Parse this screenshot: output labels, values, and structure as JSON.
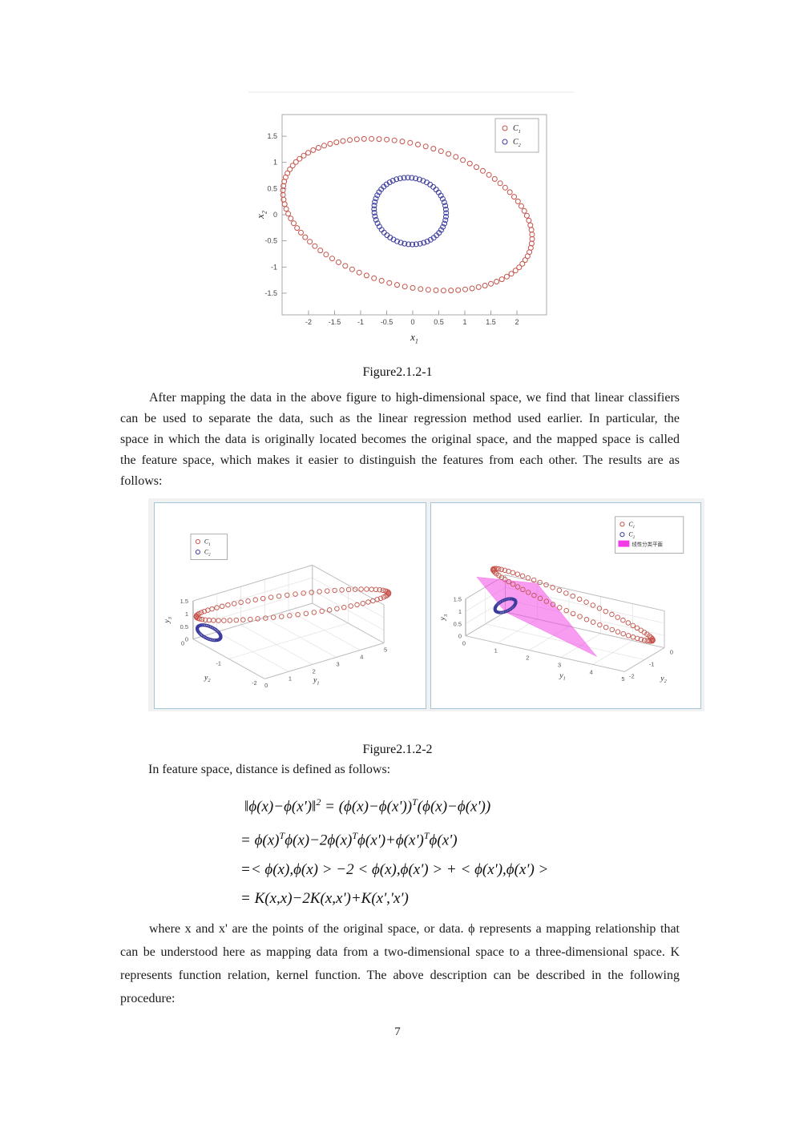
{
  "page": {
    "number": "7"
  },
  "captions": {
    "fig1": "Figure2.1.2-1",
    "fig2": "Figure2.1.2-2"
  },
  "paragraphs": {
    "p1": "After mapping the data in the above figure to high-dimensional space, we find that linear classifiers can be used to separate the data, such as the linear regression method used earlier. In particular, the space in which the data is originally located becomes the original space, and the mapped space is called the feature space, which makes it easier to distinguish the features from each other. The results are as follows:",
    "lead": "In feature space, distance is defined as follows:",
    "p2": "where x and x' are the points of the original space, or data. ϕ  represents a mapping relationship that can be understood here as mapping data from a two-dimensional space to a three-dimensional space. K represents function relation, kernel function. The above description can be described in the following procedure:"
  },
  "equations": [
    "‖ϕ(x)−ϕ(x')‖^{2} = (ϕ(x)−ϕ(x'))^{T}(ϕ(x)−ϕ(x'))",
    "= ϕ(x)^{T}ϕ(x)−2ϕ(x)^{T}ϕ(x')+ϕ(x')^{T}ϕ(x')",
    "=< ϕ(x),ϕ(x) > −2 < ϕ(x),ϕ(x') > + < ϕ(x'),ϕ(x') >",
    "= K(x,x)−2K(x,x')+K(x','x')"
  ],
  "colors": {
    "class1": "#c4524a",
    "class2": "#3b3b9d",
    "plane": "#f23ae6",
    "panel_border": "#a5c6da",
    "figure_background": "#f1f1f1"
  },
  "chart_data": [
    {
      "id": "fig1",
      "type": "scatter",
      "title": "",
      "xlabel": {
        "base": "x",
        "sub": "1"
      },
      "ylabel": {
        "base": "x",
        "sub": "2"
      },
      "xlim": [
        -2.55,
        2.6
      ],
      "ylim": [
        -1.9,
        1.9
      ],
      "x_ticks": [
        -2,
        -1.5,
        -1,
        -0.5,
        0,
        0.5,
        1,
        1.5,
        2
      ],
      "y_ticks": [
        -1.5,
        -1,
        -0.5,
        0,
        0.5,
        1,
        1.5
      ],
      "grid": false,
      "legend_position": "top-right",
      "legend": [
        {
          "base": "C",
          "sub": "1",
          "color": "#c4524a",
          "marker": "o"
        },
        {
          "base": "C",
          "sub": "2",
          "color": "#3b3b9d",
          "marker": "o"
        }
      ],
      "series": [
        {
          "name": "C1",
          "marker": "o",
          "color": "#c4524a",
          "shape": "ellipse-ring",
          "center": [
            -0.1,
            0
          ],
          "rx": 2.45,
          "ry": 1.35,
          "rotation_deg": -15,
          "n": 100
        },
        {
          "name": "C2",
          "marker": "o",
          "color": "#3b3b9d",
          "shape": "ellipse-ring",
          "center": [
            -0.05,
            0.07
          ],
          "rx": 0.7,
          "ry": 0.63,
          "rotation_deg": -20,
          "n": 58
        }
      ]
    },
    {
      "id": "fig2-left",
      "type": "scatter3d",
      "title": "",
      "xlabel": {
        "base": "y",
        "sub": "1"
      },
      "ylabel": {
        "base": "y",
        "sub": "2"
      },
      "zlabel": {
        "base": "y",
        "sub": "3"
      },
      "x_ticks": [
        0,
        1,
        2,
        3,
        4,
        5
      ],
      "y_ticks": [
        0,
        -1,
        -2
      ],
      "z_ticks": [
        0,
        0.5,
        1,
        1.5
      ],
      "grid": true,
      "legend_position": "top-left",
      "legend": [
        {
          "base": "C",
          "sub": "1",
          "color": "#c4524a",
          "marker": "o"
        },
        {
          "base": "C",
          "sub": "2",
          "color": "#3b3b9d",
          "marker": "o"
        }
      ],
      "description": "Red class C1 forms an elongated elliptical ring high in feature space (y3 near 1 to 1.5); blue class C2 forms a small dense cluster near the origin at low y3."
    },
    {
      "id": "fig2-right",
      "type": "scatter3d",
      "title": "",
      "xlabel": {
        "base": "y",
        "sub": "1"
      },
      "ylabel": {
        "base": "y",
        "sub": "2"
      },
      "zlabel": {
        "base": "y",
        "sub": "3"
      },
      "x_ticks": [
        0,
        1,
        2,
        3,
        4,
        5
      ],
      "y_ticks": [
        0,
        -1,
        -2
      ],
      "z_ticks": [
        0,
        0.5,
        1,
        1.5
      ],
      "grid": true,
      "legend_position": "top-right",
      "legend": [
        {
          "base": "C",
          "sub": "1",
          "color": "#c4524a",
          "marker": "o"
        },
        {
          "base": "C",
          "sub": "2",
          "color": "#3b3b9d",
          "marker": "o"
        },
        {
          "label": "线性分类平面",
          "color": "#f23ae6",
          "marker": "patch"
        }
      ],
      "description": "Same mapped data with a magenta linear separating plane slicing between the red ring and the blue cluster."
    }
  ]
}
